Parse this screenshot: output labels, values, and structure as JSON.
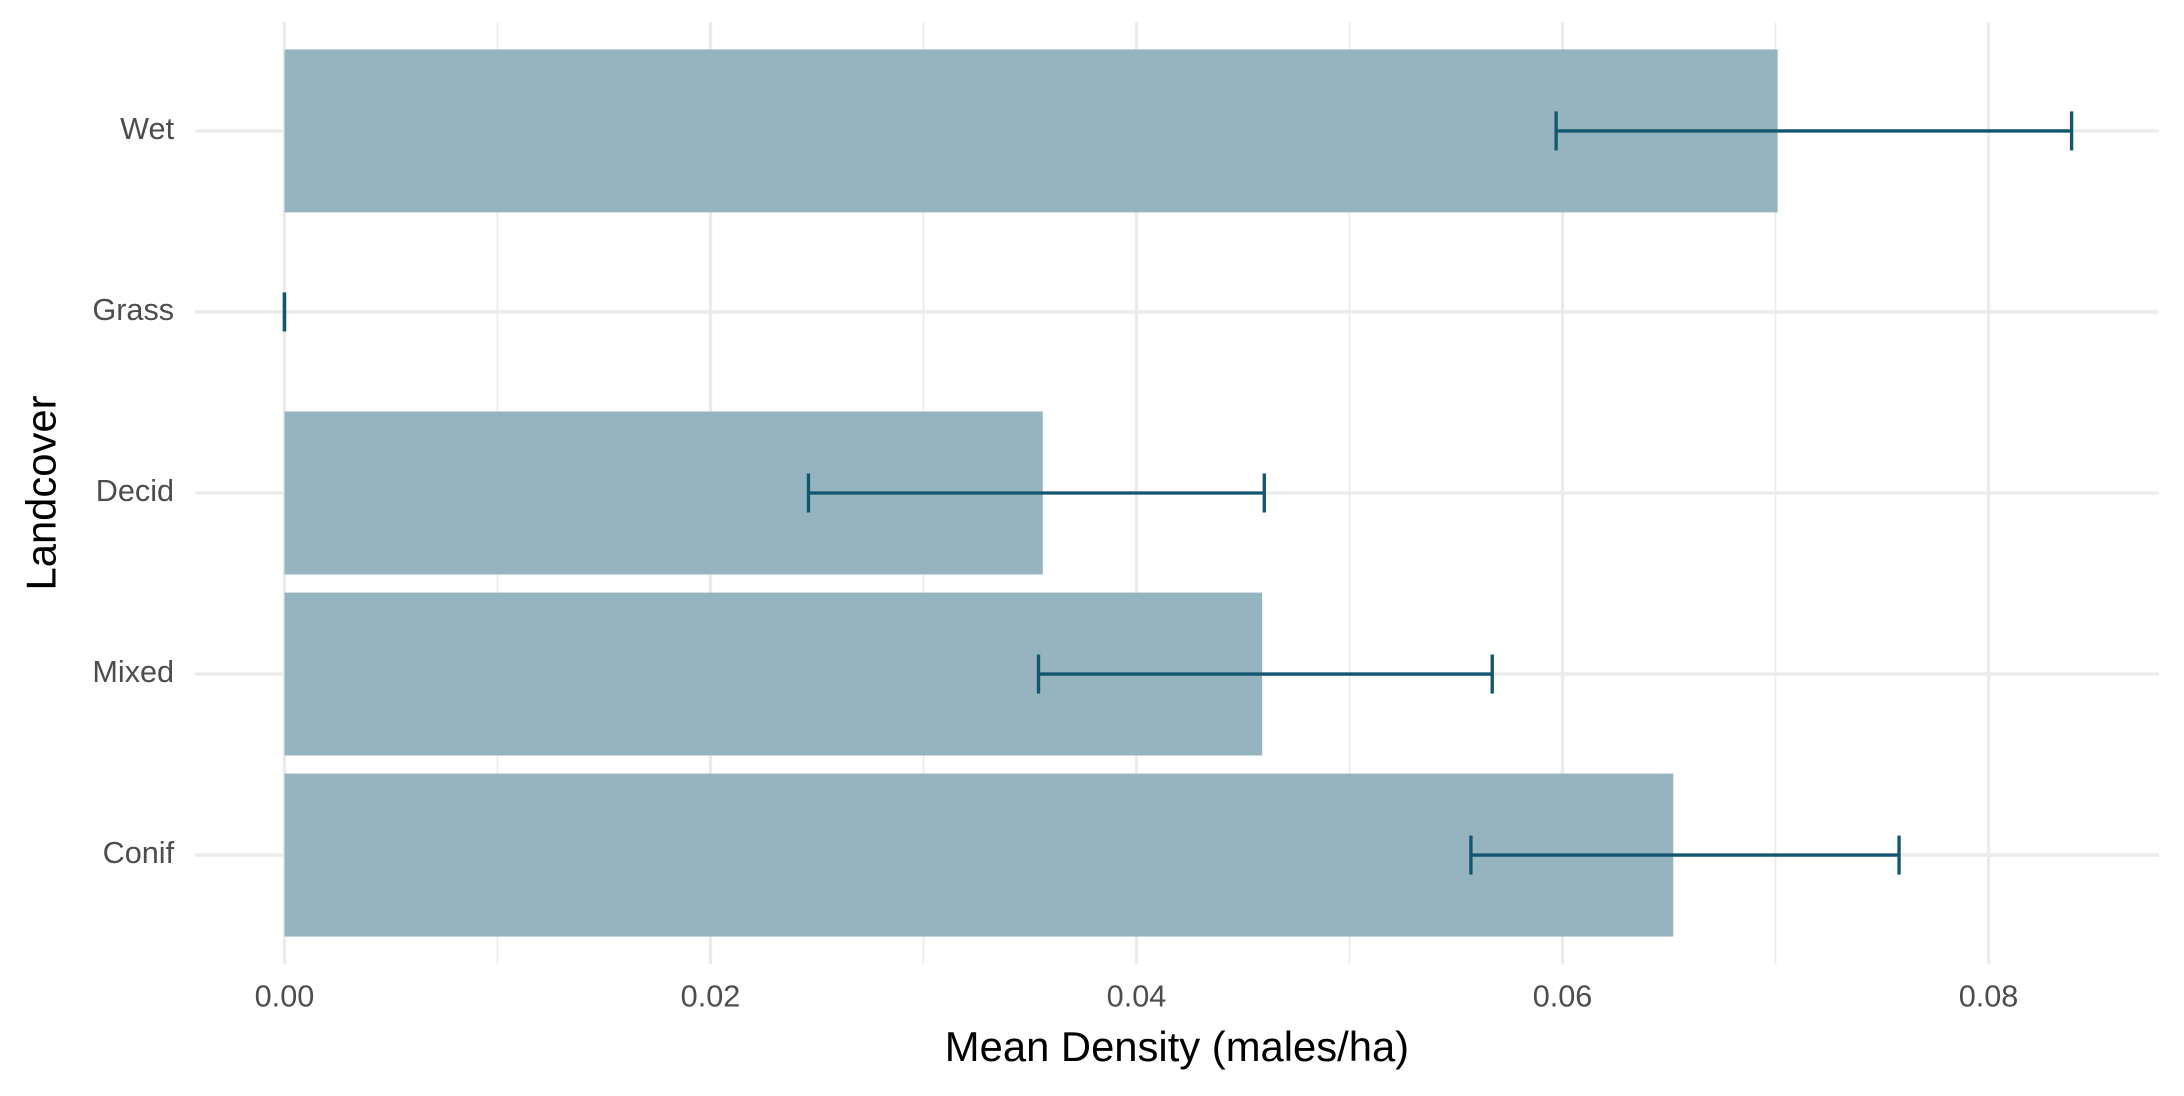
{
  "chart_data": {
    "type": "bar",
    "orientation": "horizontal",
    "x_label": "Mean Density (males/ha)",
    "y_label": "Landcover",
    "categories": [
      "Conif",
      "Mixed",
      "Decid",
      "Grass",
      "Wet"
    ],
    "values": [
      0.0652,
      0.0459,
      0.0356,
      0,
      0.0701
    ],
    "error_lower": [
      0.0557,
      0.0354,
      0.0246,
      0,
      0.0597
    ],
    "error_upper": [
      0.0758,
      0.0567,
      0.046,
      0,
      0.0839
    ],
    "color": "#96b4bf",
    "error_color": "#12566f",
    "xlim": [
      -0.0042,
      0.088
    ],
    "xticks": [
      {
        "value": 0,
        "label": "0.00"
      },
      {
        "value": 0.02,
        "label": "0.02"
      },
      {
        "value": 0.04,
        "label": "0.04"
      },
      {
        "value": 0.06,
        "label": "0.06"
      },
      {
        "value": 0.08,
        "label": "0.08"
      }
    ],
    "x_minor_grid": [
      0.01,
      0.03,
      0.05,
      0.07
    ],
    "grid": true
  }
}
